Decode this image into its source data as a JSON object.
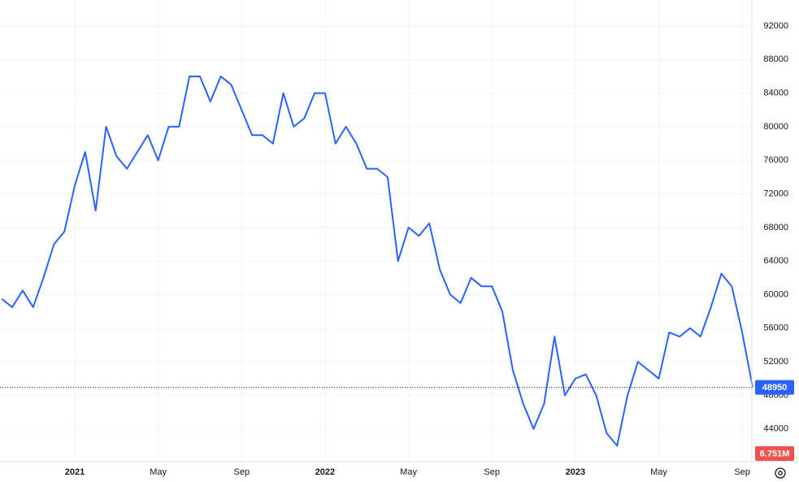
{
  "chart_data": {
    "type": "line",
    "categories": [
      null,
      null,
      null,
      null,
      null,
      null,
      null,
      "2021",
      null,
      null,
      null,
      null,
      null,
      null,
      null,
      "May",
      null,
      null,
      null,
      null,
      null,
      null,
      null,
      "Sep",
      null,
      null,
      null,
      null,
      null,
      null,
      null,
      "2022",
      null,
      null,
      null,
      null,
      null,
      null,
      null,
      "May",
      null,
      null,
      null,
      null,
      null,
      null,
      null,
      "Sep",
      null,
      null,
      null,
      null,
      null,
      null,
      null,
      "2023",
      null,
      null,
      null,
      null,
      null,
      null,
      null,
      "May",
      null,
      null,
      null,
      null,
      null,
      null,
      null,
      "Sep",
      null
    ],
    "values": [
      59500,
      58500,
      60500,
      58500,
      62000,
      66000,
      67500,
      73000,
      77000,
      70000,
      80000,
      76500,
      75000,
      77000,
      79000,
      76000,
      80000,
      80000,
      86000,
      86000,
      83000,
      86000,
      85000,
      82000,
      79000,
      79000,
      78000,
      84000,
      80000,
      81000,
      84000,
      84000,
      78000,
      80000,
      78000,
      75000,
      75000,
      74000,
      64000,
      68000,
      67000,
      68500,
      63000,
      60000,
      59000,
      62000,
      61000,
      61000,
      58000,
      51000,
      47000,
      44000,
      47000,
      55000,
      48000,
      50000,
      50500,
      48000,
      43500,
      42000,
      48000,
      52000,
      51000,
      50000,
      55500,
      55000,
      56000,
      55000,
      58500,
      62500,
      61000,
      55500,
      48950
    ],
    "color": "#2962ff",
    "ylim": [
      40100,
      95100
    ],
    "yticks": [
      44000,
      48000,
      52000,
      56000,
      60000,
      64000,
      68000,
      72000,
      76000,
      80000,
      84000,
      88000,
      92000
    ],
    "grid": true,
    "volume_label": "6.751M"
  }
}
